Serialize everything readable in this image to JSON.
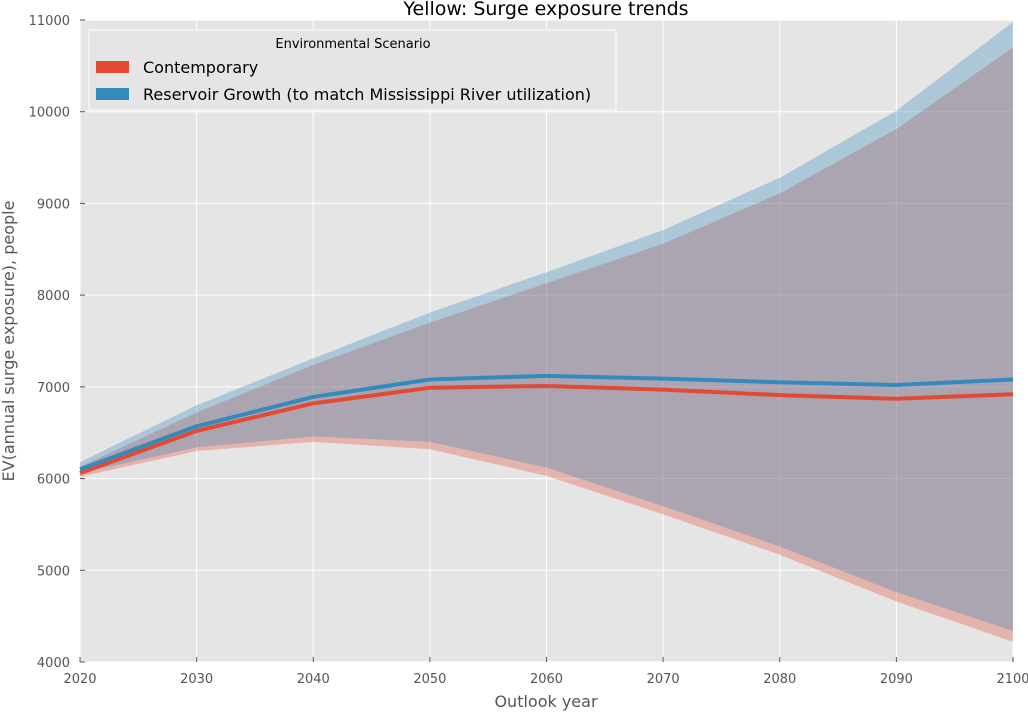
{
  "chart_data": {
    "type": "line",
    "title": "Yellow: Surge exposure trends",
    "xlabel": "Outlook year",
    "ylabel": "EV(annual surge exposure), people",
    "xlim": [
      2020,
      2100
    ],
    "ylim": [
      4000,
      11000
    ],
    "xticks": [
      2020,
      2030,
      2040,
      2050,
      2060,
      2070,
      2080,
      2090,
      2100
    ],
    "yticks": [
      4000,
      5000,
      6000,
      7000,
      8000,
      9000,
      10000,
      11000
    ],
    "grid": true,
    "legend": {
      "title": "Environmental Scenario",
      "placement": "top-left"
    },
    "x": [
      2020,
      2030,
      2040,
      2050,
      2060,
      2070,
      2080,
      2090,
      2100
    ],
    "series": [
      {
        "name": "Contemporary",
        "color": "#E24A33",
        "values": [
          6060,
          6520,
          6820,
          6990,
          7010,
          6970,
          6910,
          6870,
          6920
        ],
        "band_low": [
          6020,
          6300,
          6400,
          6320,
          6030,
          5610,
          5170,
          4660,
          4220
        ],
        "band_high": [
          6130,
          6720,
          7240,
          7700,
          8130,
          8560,
          9110,
          9810,
          10700
        ]
      },
      {
        "name": "Reservoir Growth (to match Mississippi River utilization)",
        "color": "#348ABD",
        "values": [
          6100,
          6570,
          6890,
          7080,
          7120,
          7090,
          7050,
          7020,
          7080
        ],
        "band_low": [
          6060,
          6340,
          6460,
          6400,
          6120,
          5700,
          5260,
          4760,
          4340
        ],
        "band_high": [
          6180,
          6800,
          7310,
          7810,
          8250,
          8710,
          9280,
          10010,
          10980
        ]
      }
    ]
  }
}
